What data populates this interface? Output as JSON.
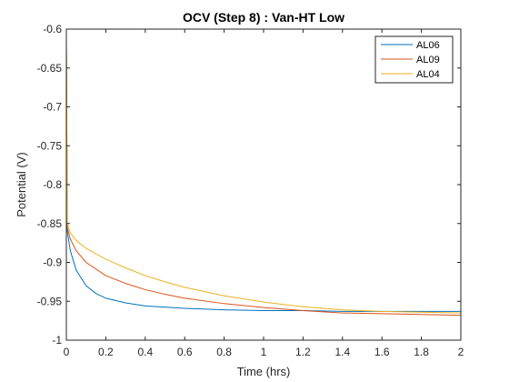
{
  "chart_data": {
    "type": "line",
    "title": "OCV (Step 8) : Van-HT Low",
    "xlabel": "Time (hrs)",
    "ylabel": "Potential (V)",
    "xlim": [
      0,
      2
    ],
    "ylim": [
      -1,
      -0.6
    ],
    "xticks": [
      0,
      0.2,
      0.4,
      0.6,
      0.8,
      1,
      1.2,
      1.4,
      1.6,
      1.8,
      2
    ],
    "xtick_labels": [
      "0",
      "0.2",
      "0.4",
      "0.6",
      "0.8",
      "1",
      "1.2",
      "1.4",
      "1.6",
      "1.8",
      "2"
    ],
    "yticks": [
      -1,
      -0.95,
      -0.9,
      -0.85,
      -0.8,
      -0.75,
      -0.7,
      -0.65,
      -0.6
    ],
    "ytick_labels": [
      "-1",
      "-0.95",
      "-0.9",
      "-0.85",
      "-0.8",
      "-0.75",
      "-0.7",
      "-0.65",
      "-0.6"
    ],
    "grid": false,
    "legend_position": "top-right",
    "series": [
      {
        "name": "AL06",
        "color": "#0072BD",
        "x": [
          0,
          0.005,
          0.02,
          0.05,
          0.1,
          0.15,
          0.2,
          0.3,
          0.4,
          0.6,
          0.8,
          1.0,
          1.2,
          1.4,
          1.6,
          1.8,
          2.0
        ],
        "y": [
          -0.62,
          -0.86,
          -0.885,
          -0.91,
          -0.93,
          -0.94,
          -0.946,
          -0.952,
          -0.956,
          -0.959,
          -0.961,
          -0.962,
          -0.962,
          -0.963,
          -0.963,
          -0.963,
          -0.963
        ]
      },
      {
        "name": "AL09",
        "color": "#D95319",
        "x": [
          0,
          0.005,
          0.02,
          0.05,
          0.1,
          0.2,
          0.3,
          0.4,
          0.5,
          0.6,
          0.8,
          1.0,
          1.2,
          1.4,
          1.6,
          1.8,
          2.0
        ],
        "y": [
          -0.62,
          -0.855,
          -0.87,
          -0.885,
          -0.9,
          -0.917,
          -0.927,
          -0.935,
          -0.941,
          -0.946,
          -0.953,
          -0.958,
          -0.962,
          -0.965,
          -0.966,
          -0.967,
          -0.968
        ]
      },
      {
        "name": "AL04",
        "color": "#EDB120",
        "x": [
          0,
          0.005,
          0.02,
          0.05,
          0.1,
          0.2,
          0.3,
          0.4,
          0.5,
          0.6,
          0.8,
          1.0,
          1.2,
          1.4,
          1.6,
          1.8,
          2.0
        ],
        "y": [
          -0.62,
          -0.85,
          -0.862,
          -0.872,
          -0.882,
          -0.896,
          -0.907,
          -0.917,
          -0.925,
          -0.932,
          -0.943,
          -0.951,
          -0.957,
          -0.961,
          -0.963,
          -0.964,
          -0.965
        ]
      }
    ]
  }
}
